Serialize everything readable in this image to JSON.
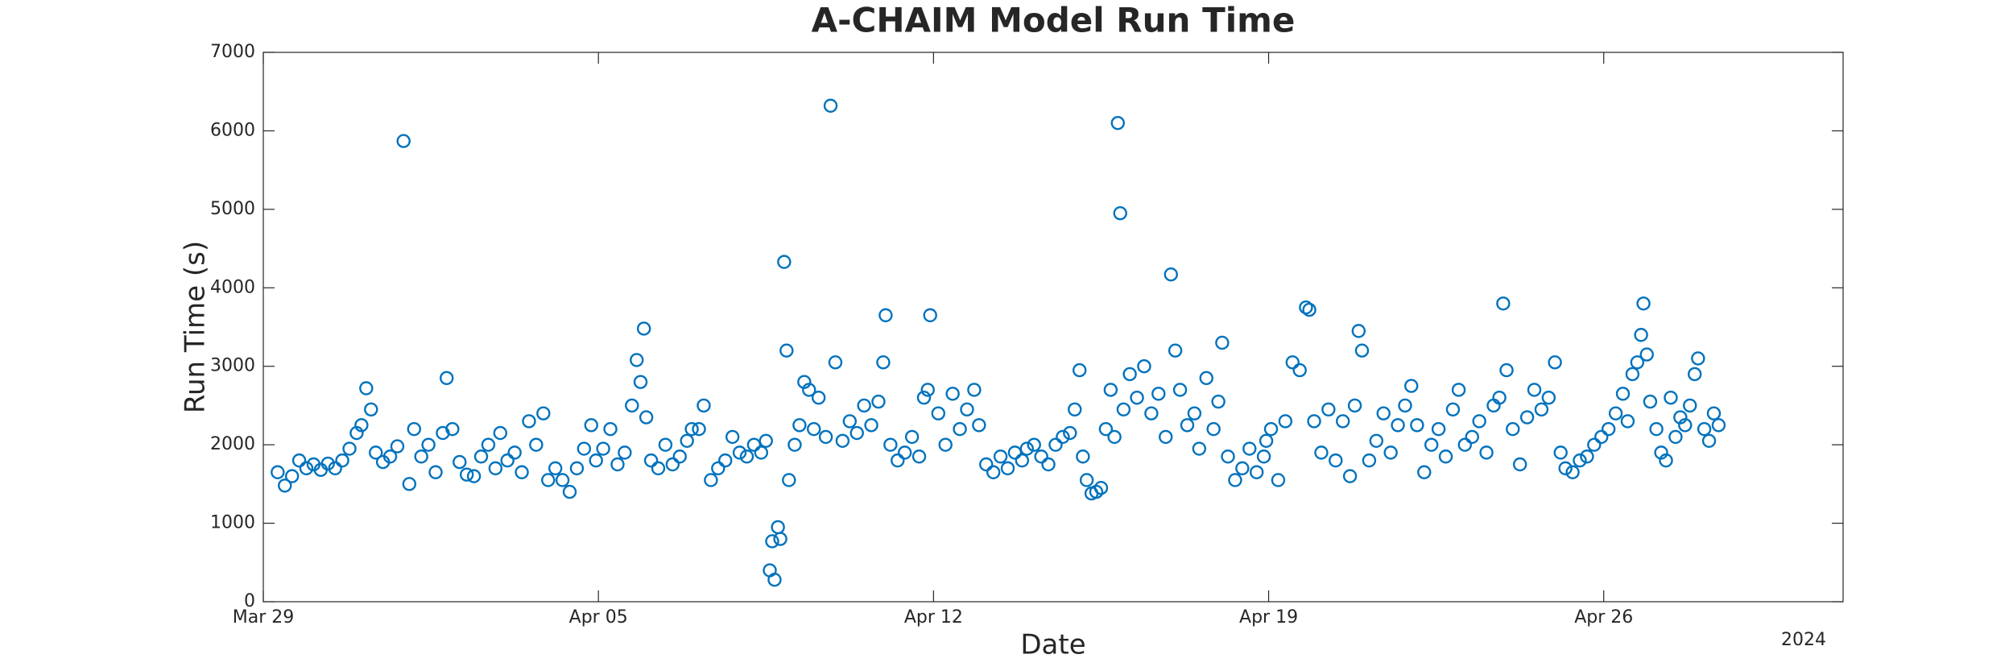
{
  "chart_data": {
    "type": "scatter",
    "title": "A-CHAIM Model Run Time",
    "x_label": "Date",
    "y_label": "Run Time (s)",
    "x_axis_note": "2024",
    "color": "#0072bd",
    "xlim": [
      0,
      33
    ],
    "xticks": [
      {
        "value": 0,
        "label": "Mar 29"
      },
      {
        "value": 7,
        "label": "Apr 05"
      },
      {
        "value": 14,
        "label": "Apr 12"
      },
      {
        "value": 21,
        "label": "Apr 19"
      },
      {
        "value": 28,
        "label": "Apr 26"
      }
    ],
    "ylim": [
      0,
      7000
    ],
    "yticks": [
      0,
      1000,
      2000,
      3000,
      4000,
      5000,
      6000,
      7000
    ],
    "x": [
      0.3,
      0.45,
      0.6,
      0.75,
      0.9,
      1.05,
      1.2,
      1.35,
      1.5,
      1.65,
      1.8,
      1.95,
      2.05,
      2.15,
      2.25,
      2.35,
      2.5,
      2.65,
      2.8,
      2.93,
      3.05,
      3.15,
      3.3,
      3.45,
      3.6,
      3.75,
      3.83,
      3.95,
      4.1,
      4.25,
      4.4,
      4.55,
      4.7,
      4.85,
      4.95,
      5.1,
      5.25,
      5.4,
      5.55,
      5.7,
      5.85,
      5.95,
      6.1,
      6.25,
      6.4,
      6.55,
      6.7,
      6.85,
      6.95,
      7.1,
      7.25,
      7.4,
      7.55,
      7.7,
      7.8,
      7.88,
      7.95,
      8.0,
      8.1,
      8.25,
      8.4,
      8.55,
      8.7,
      8.85,
      8.95,
      9.1,
      9.2,
      9.35,
      9.5,
      9.65,
      9.8,
      9.95,
      10.1,
      10.25,
      10.4,
      10.5,
      10.58,
      10.63,
      10.68,
      10.75,
      10.8,
      10.88,
      10.93,
      10.98,
      11.1,
      11.2,
      11.3,
      11.4,
      11.5,
      11.6,
      11.75,
      11.85,
      11.95,
      12.1,
      12.25,
      12.4,
      12.55,
      12.7,
      12.85,
      12.95,
      13.0,
      13.1,
      13.25,
      13.4,
      13.55,
      13.7,
      13.8,
      13.88,
      13.93,
      14.1,
      14.25,
      14.4,
      14.55,
      14.7,
      14.85,
      14.95,
      15.1,
      15.25,
      15.4,
      15.55,
      15.7,
      15.85,
      15.95,
      16.1,
      16.25,
      16.4,
      16.55,
      16.7,
      16.85,
      16.95,
      17.05,
      17.12,
      17.2,
      17.3,
      17.4,
      17.5,
      17.6,
      17.7,
      17.78,
      17.85,
      17.9,
      17.97,
      18.1,
      18.25,
      18.4,
      18.55,
      18.7,
      18.85,
      18.96,
      19.05,
      19.15,
      19.3,
      19.45,
      19.55,
      19.7,
      19.85,
      19.95,
      20.03,
      20.15,
      20.3,
      20.45,
      20.6,
      20.75,
      20.9,
      20.95,
      21.05,
      21.2,
      21.35,
      21.5,
      21.65,
      21.78,
      21.85,
      21.95,
      22.1,
      22.25,
      22.4,
      22.55,
      22.7,
      22.8,
      22.88,
      22.95,
      23.1,
      23.25,
      23.4,
      23.55,
      23.7,
      23.85,
      23.98,
      24.1,
      24.25,
      24.4,
      24.55,
      24.7,
      24.85,
      24.97,
      25.1,
      25.25,
      25.4,
      25.55,
      25.7,
      25.82,
      25.9,
      25.97,
      26.1,
      26.25,
      26.4,
      26.55,
      26.7,
      26.85,
      26.98,
      27.1,
      27.2,
      27.35,
      27.5,
      27.65,
      27.8,
      27.95,
      28.1,
      28.25,
      28.4,
      28.5,
      28.6,
      28.7,
      28.78,
      28.83,
      28.9,
      28.97,
      29.1,
      29.2,
      29.3,
      29.4,
      29.5,
      29.6,
      29.7,
      29.8,
      29.9,
      29.97,
      30.1,
      30.2,
      30.3,
      30.4
    ],
    "values": [
      1650,
      1480,
      1600,
      1800,
      1700,
      1750,
      1680,
      1760,
      1700,
      1800,
      1950,
      2150,
      2250,
      2720,
      2450,
      1900,
      1780,
      1850,
      1980,
      5870,
      1500,
      2200,
      1850,
      2000,
      1650,
      2150,
      2850,
      2200,
      1780,
      1620,
      1600,
      1850,
      2000,
      1700,
      2150,
      1800,
      1900,
      1650,
      2300,
      2000,
      2400,
      1550,
      1700,
      1550,
      1400,
      1700,
      1950,
      2250,
      1800,
      1950,
      2200,
      1750,
      1900,
      2500,
      3080,
      2800,
      3480,
      2350,
      1800,
      1700,
      2000,
      1750,
      1850,
      2050,
      2200,
      2200,
      2500,
      1550,
      1700,
      1800,
      2100,
      1900,
      1850,
      2000,
      1900,
      2050,
      400,
      770,
      280,
      950,
      800,
      4330,
      3200,
      1550,
      2000,
      2250,
      2800,
      2700,
      2200,
      2600,
      2100,
      6320,
      3050,
      2050,
      2300,
      2150,
      2500,
      2250,
      2550,
      3050,
      3650,
      2000,
      1800,
      1900,
      2100,
      1850,
      2600,
      2700,
      3650,
      2400,
      2000,
      2650,
      2200,
      2450,
      2700,
      2250,
      1750,
      1650,
      1850,
      1700,
      1900,
      1800,
      1950,
      2000,
      1850,
      1750,
      2000,
      2100,
      2150,
      2450,
      2950,
      1850,
      1550,
      1380,
      1400,
      1450,
      2200,
      2700,
      2100,
      6100,
      4950,
      2450,
      2900,
      2600,
      3000,
      2400,
      2650,
      2100,
      4170,
      3200,
      2700,
      2250,
      2400,
      1950,
      2850,
      2200,
      2550,
      3300,
      1850,
      1550,
      1700,
      1950,
      1650,
      1850,
      2050,
      2200,
      1550,
      2300,
      3050,
      2950,
      3750,
      3720,
      2300,
      1900,
      2450,
      1800,
      2300,
      1600,
      2500,
      3450,
      3200,
      1800,
      2050,
      2400,
      1900,
      2250,
      2500,
      2750,
      2250,
      1650,
      2000,
      2200,
      1850,
      2450,
      2700,
      2000,
      2100,
      2300,
      1900,
      2500,
      2600,
      3800,
      2950,
      2200,
      1750,
      2350,
      2700,
      2450,
      2600,
      3050,
      1900,
      1700,
      1650,
      1800,
      1850,
      2000,
      2100,
      2200,
      2400,
      2650,
      2300,
      2900,
      3050,
      3400,
      3800,
      3150,
      2550,
      2200,
      1900,
      1800,
      2600,
      2100,
      2350,
      2250,
      2500,
      2900,
      3100,
      2200,
      2050,
      2400,
      2250
    ]
  }
}
